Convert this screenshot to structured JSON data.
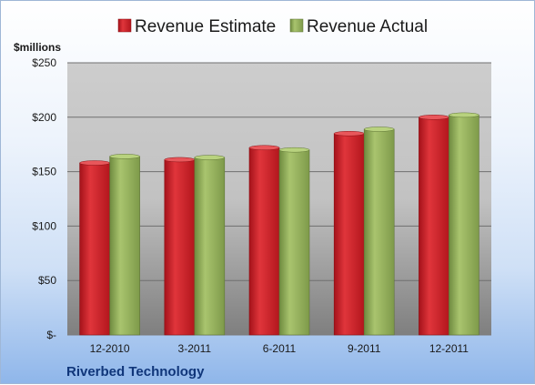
{
  "chart_data": {
    "type": "bar",
    "categories": [
      "12-2010",
      "3-2011",
      "6-2011",
      "9-2011",
      "12-2011"
    ],
    "series": [
      {
        "name": "Revenue Estimate",
        "values": [
          158,
          161,
          172,
          185,
          200
        ],
        "color": "#c0171d"
      },
      {
        "name": "Revenue Actual",
        "values": [
          164,
          163,
          170,
          189,
          202
        ],
        "color": "#8aa653"
      }
    ],
    "ylabel": "$millions",
    "ylim": [
      0,
      250
    ],
    "yticks": [
      {
        "value": 250,
        "label": "$250"
      },
      {
        "value": 200,
        "label": "$200"
      },
      {
        "value": 150,
        "label": "$150"
      },
      {
        "value": 100,
        "label": "$100"
      },
      {
        "value": 50,
        "label": "$50"
      },
      {
        "value": 0,
        "label": "$-"
      }
    ],
    "grid": true,
    "legend": "top"
  },
  "footer": {
    "company": "Riverbed Technology"
  }
}
